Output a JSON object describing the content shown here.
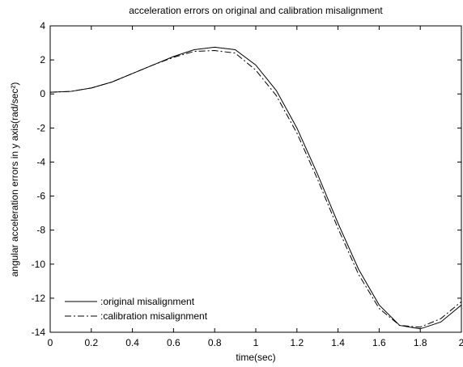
{
  "chart_data": {
    "type": "line",
    "title": "acceleration errors on original and calibration misalignment",
    "xlabel": "time(sec)",
    "ylabel": "angular acceleration errors in y axis(rad/sec²)",
    "x": [
      0,
      0.1,
      0.2,
      0.3,
      0.4,
      0.5,
      0.6,
      0.7,
      0.8,
      0.9,
      1.0,
      1.1,
      1.2,
      1.3,
      1.4,
      1.5,
      1.6,
      1.7,
      1.8,
      1.9,
      2.0
    ],
    "series": [
      {
        "name": ":original misalignment",
        "color": "#000000",
        "linestyle": "-",
        "values": [
          0.1,
          0.15,
          0.35,
          0.7,
          1.2,
          1.7,
          2.2,
          2.6,
          2.75,
          2.6,
          1.7,
          0.2,
          -2.0,
          -4.7,
          -7.6,
          -10.3,
          -12.4,
          -13.6,
          -13.8,
          -13.4,
          -12.4
        ]
      },
      {
        "name": ":calibration misalignment",
        "color": "#000000",
        "linestyle": "-.",
        "values": [
          0.1,
          0.15,
          0.35,
          0.7,
          1.2,
          1.7,
          2.15,
          2.5,
          2.55,
          2.4,
          1.4,
          -0.1,
          -2.3,
          -5.0,
          -7.9,
          -10.6,
          -12.6,
          -13.6,
          -13.7,
          -13.2,
          -12.2
        ]
      }
    ],
    "xlim": [
      0,
      2
    ],
    "xticks": [
      0,
      0.2,
      0.4,
      0.6,
      0.8,
      1,
      1.2,
      1.4,
      1.6,
      1.8,
      2
    ],
    "ylim": [
      -14,
      4
    ],
    "yticks": [
      -14,
      -12,
      -10,
      -8,
      -6,
      -4,
      -2,
      0,
      2,
      4
    ],
    "grid": false,
    "legend": "lower left"
  }
}
